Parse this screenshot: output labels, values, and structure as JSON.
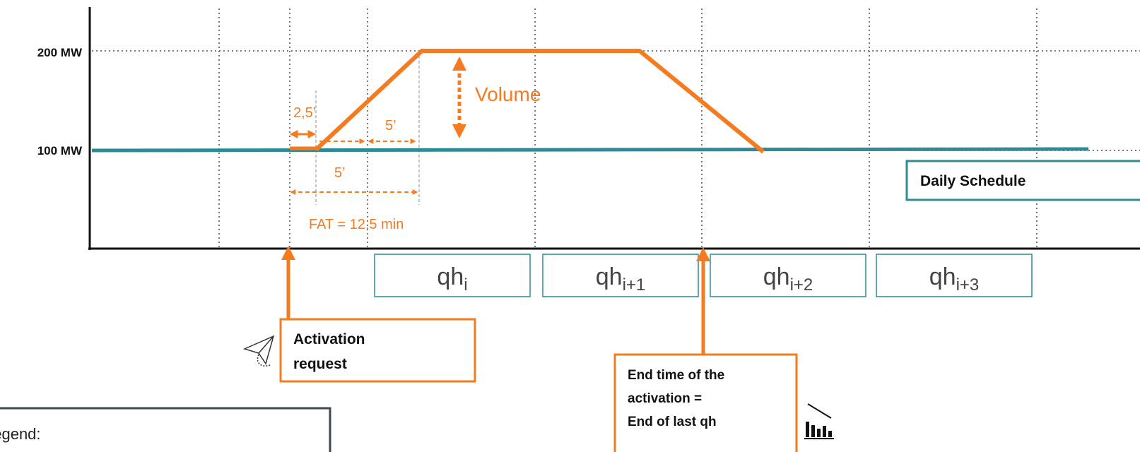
{
  "axis": {
    "y_labels": [
      "200 MW",
      "100 MW"
    ]
  },
  "annotations": {
    "volume": "Volume",
    "ramp_delay": "2,5’",
    "ramp_a": "5’",
    "ramp_b": "5’",
    "fat": "FAT = 12,5 min"
  },
  "schedule_label": "Daily Schedule",
  "quarter_hours": [
    {
      "base": "qh",
      "sub": "i"
    },
    {
      "base": "qh",
      "sub": "i+1"
    },
    {
      "base": "qh",
      "sub": "i+2"
    },
    {
      "base": "qh",
      "sub": "i+3"
    }
  ],
  "activation_box": {
    "lines": [
      "Activation",
      "request"
    ]
  },
  "end_box": {
    "lines": [
      "End time of the",
      "activation =",
      "End of last qh"
    ]
  },
  "legend": {
    "title": "Legend:"
  }
}
